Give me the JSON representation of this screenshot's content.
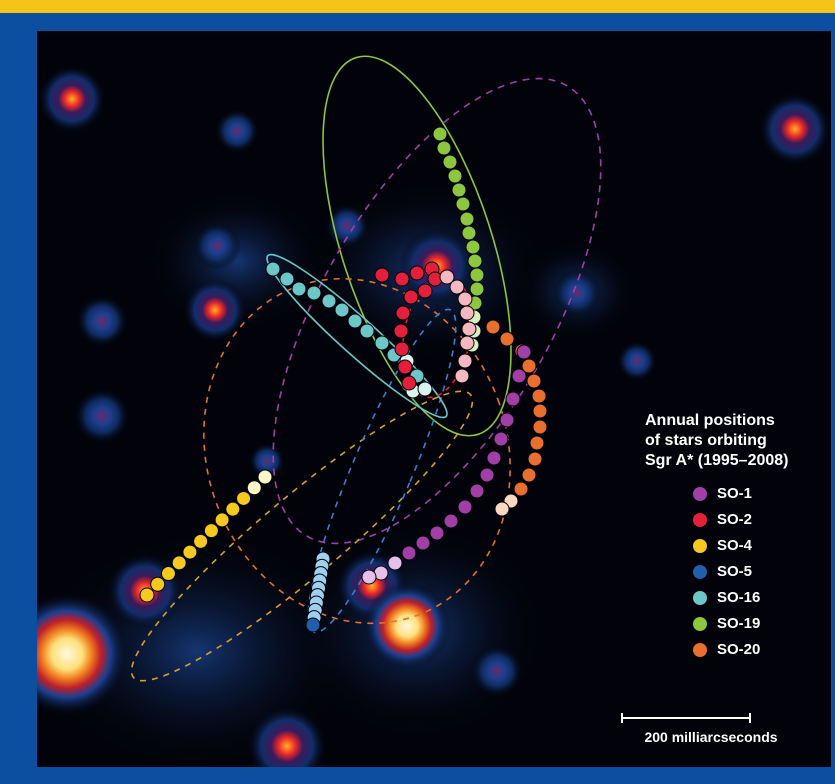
{
  "legend": {
    "title": "Annual positions\nof stars orbiting\nSgr A* (1995–2008)",
    "items": [
      {
        "label": "SO-1",
        "color": "#a23fa6"
      },
      {
        "label": "SO-2",
        "color": "#e31f3b"
      },
      {
        "label": "SO-4",
        "color": "#f6c91f"
      },
      {
        "label": "SO-5",
        "color": "#1f5fae"
      },
      {
        "label": "SO-16",
        "color": "#6cc7c7"
      },
      {
        "label": "SO-19",
        "color": "#8dc63f"
      },
      {
        "label": "SO-20",
        "color": "#e86f2d"
      }
    ]
  },
  "scale": {
    "label": "200 milliarcseconds"
  },
  "colors": {
    "border": "#0c4ea0",
    "topbar": "#f5c419",
    "background": "#02030a"
  }
}
